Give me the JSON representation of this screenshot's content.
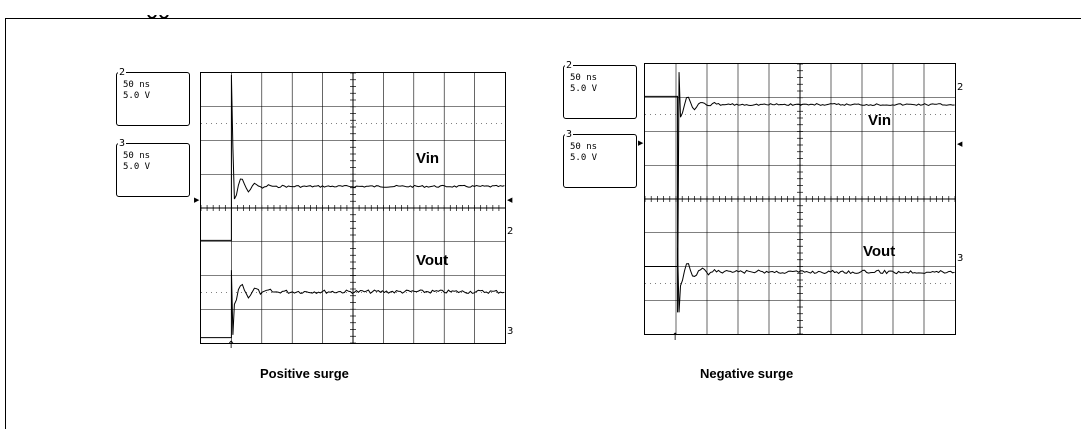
{
  "chart_data": [
    {
      "type": "line",
      "title": "",
      "caption": "Positive surge",
      "timebase_readouts": [
        {
          "channel": "2",
          "time_div": "50 ns",
          "volt_div": "5.0 V"
        },
        {
          "channel": "3",
          "time_div": "50 ns",
          "volt_div": "5.0 V"
        }
      ],
      "grid": {
        "x_divisions": 10,
        "y_divisions": 8
      },
      "series": [
        {
          "name": "Vin",
          "marker": "2"
        },
        {
          "name": "Vout",
          "marker": "3"
        }
      ]
    },
    {
      "type": "line",
      "title": "",
      "caption": "Negative surge",
      "timebase_readouts": [
        {
          "channel": "2",
          "time_div": "50 ns",
          "volt_div": "5.0 V"
        },
        {
          "channel": "3",
          "time_div": "50 ns",
          "volt_div": "5.0 V"
        }
      ],
      "grid": {
        "x_divisions": 10,
        "y_divisions": 8
      },
      "series": [
        {
          "name": "Vin",
          "marker": "2"
        },
        {
          "name": "Vout",
          "marker": "3"
        }
      ]
    }
  ],
  "colors": {
    "trace": "#000000",
    "grid": "#000000",
    "background": "#ffffff"
  }
}
